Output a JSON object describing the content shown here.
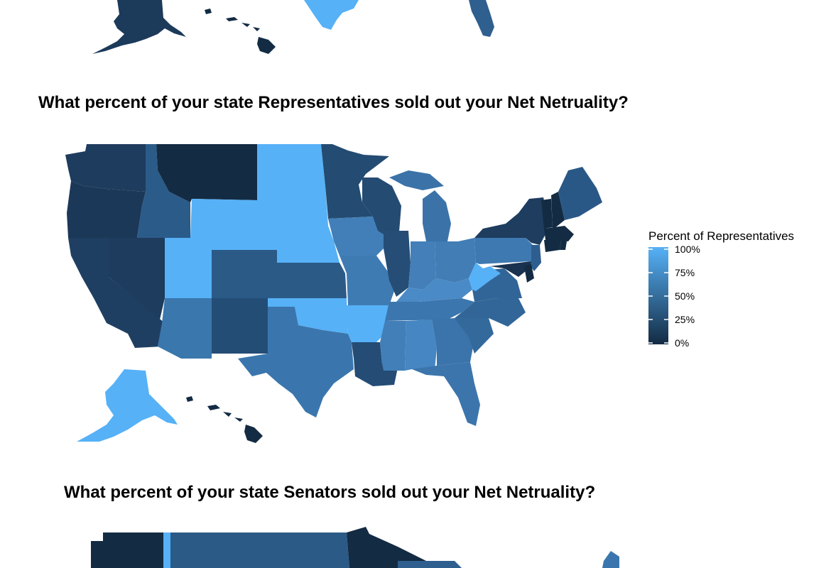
{
  "maps": [
    {
      "title": "What percent of your state Representatives sold out your Net Netruality?",
      "legend_title": "Percent of Representatives",
      "legend_ticks": [
        "100%",
        "75%",
        "50%",
        "25%",
        "0%"
      ],
      "color_scale": {
        "low": "#132B43",
        "high": "#56B1F7"
      }
    },
    {
      "title": "What percent of your state Senators sold out your Net Netruality?"
    }
  ],
  "map_data": {
    "type": "choropleth",
    "region": "United States",
    "value_unit": "percent",
    "values": {
      "WA": 25,
      "OR": 20,
      "CA": 28,
      "NV": 25,
      "ID": 50,
      "MT": 0,
      "WY": 100,
      "UT": 100,
      "AZ": 56,
      "CO": 43,
      "NM": 33,
      "ND": 100,
      "SD": 100,
      "NE": 100,
      "KS": 50,
      "OK": 100,
      "TX": 72,
      "MN": 38,
      "IA": 75,
      "MO": 75,
      "AR": 100,
      "LA": 33,
      "WI": 38,
      "IL": 33,
      "MI": 64,
      "IN": 78,
      "OH": 75,
      "KY": 83,
      "TN": 67,
      "MS": 75,
      "AL": 86,
      "GA": 71,
      "FL": 63,
      "SC": 57,
      "NC": 54,
      "VA": 55,
      "WV": 100,
      "PA": 72,
      "NY": 33,
      "VT": 0,
      "NH": 0,
      "ME": 50,
      "MA": 0,
      "CT": 0,
      "RI": 0,
      "NJ": 42,
      "DE": 0,
      "MD": 13,
      "AK": 100,
      "HI": 0
    }
  }
}
